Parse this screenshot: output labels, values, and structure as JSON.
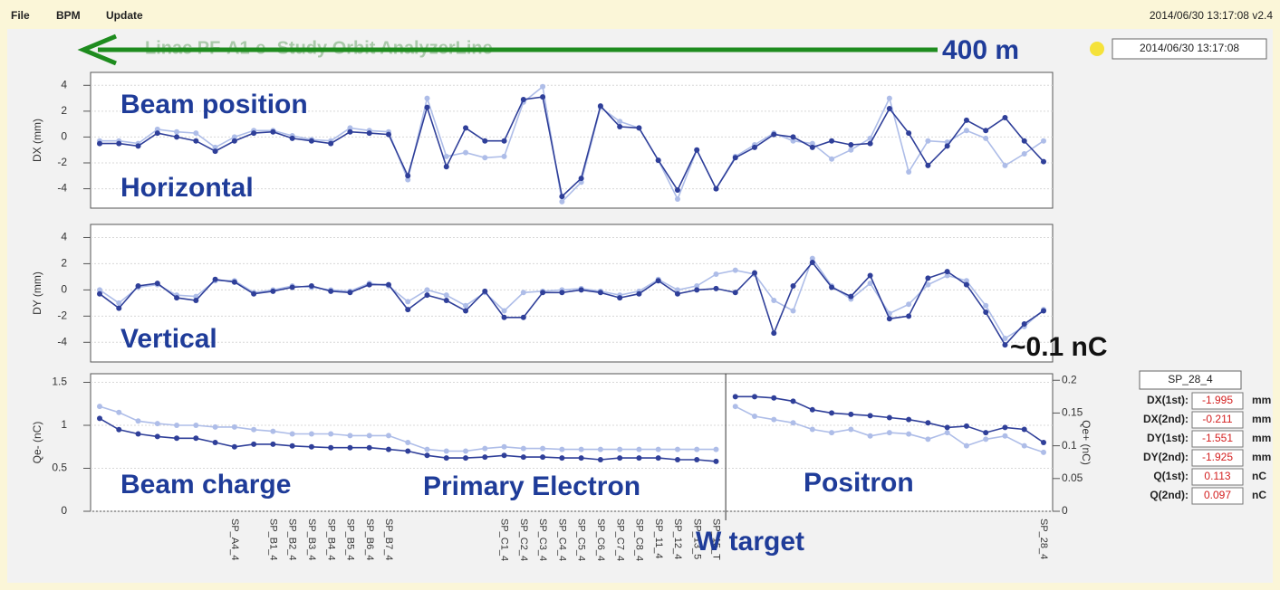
{
  "menu": [
    "File",
    "BPM",
    "Update"
  ],
  "header": {
    "status": "2014/06/30 13:17:08  v2.4",
    "clock": "2014/06/30 13:17:08",
    "title": "Linac PF-A1-e- Study Orbit AnalyzerLine"
  },
  "annotations": {
    "distance": "400 m",
    "position": "Beam position",
    "horizontal": "Horizontal",
    "vertical": "Vertical",
    "charge_level": "~0.1 nC",
    "charge": "Beam charge",
    "electron": "Primary Electron",
    "positron": "Positron",
    "target": "W target"
  },
  "readout": {
    "bpm": "SP_28_4",
    "rows": [
      {
        "label": "DX(1st):",
        "value": -1.995,
        "unit": "mm"
      },
      {
        "label": "DX(2nd):",
        "value": -0.211,
        "unit": "mm"
      },
      {
        "label": "DY(1st):",
        "value": -1.551,
        "unit": "mm"
      },
      {
        "label": "DY(2nd):",
        "value": -1.925,
        "unit": "mm"
      },
      {
        "label": "Q(1st):",
        "value": 0.113,
        "unit": "nC"
      },
      {
        "label": "Q(2nd):",
        "value": 0.097,
        "unit": "nC"
      }
    ]
  },
  "chart_data": [
    {
      "type": "line",
      "ylabel": "DX (mm)",
      "ylim": [
        -5.5,
        5
      ],
      "yticks": [
        -4,
        -2,
        0,
        2,
        4
      ],
      "grid": true,
      "series": [
        {
          "color": "#aebde8",
          "values": [
            -0.3,
            -0.3,
            -0.5,
            0.6,
            0.4,
            0.3,
            -0.8,
            0,
            0.5,
            0.5,
            0.1,
            -0.2,
            -0.3,
            0.7,
            0.5,
            0.4,
            -3.3,
            3,
            -1.5,
            -1.2,
            -1.6,
            -1.5,
            2.7,
            3.9,
            -5,
            -3.5,
            2.3,
            1.2,
            0.7,
            -1.8,
            -4.8,
            -1,
            -4,
            -1.5,
            -0.6,
            0.3,
            -0.3,
            -0.5,
            -1.7,
            -1,
            -0.1,
            3,
            -2.7,
            -0.3,
            -0.4,
            0.5,
            -0.1,
            -2.2,
            -1.3,
            -0.3
          ]
        },
        {
          "color": "#2f3f99",
          "values": [
            -0.5,
            -0.5,
            -0.7,
            0.3,
            0,
            -0.3,
            -1.1,
            -0.3,
            0.3,
            0.4,
            -0.1,
            -0.3,
            -0.5,
            0.4,
            0.3,
            0.2,
            -3,
            2.3,
            -2.3,
            0.7,
            -0.3,
            -0.3,
            2.9,
            3.1,
            -4.6,
            -3.2,
            2.4,
            0.8,
            0.7,
            -1.8,
            -4.1,
            -1,
            -4,
            -1.6,
            -0.8,
            0.2,
            0,
            -0.8,
            -0.3,
            -0.6,
            -0.5,
            2.2,
            0.3,
            -2.2,
            -0.7,
            1.3,
            0.5,
            1.5,
            -0.3,
            -1.9
          ]
        }
      ]
    },
    {
      "type": "line",
      "ylabel": "DY (mm)",
      "ylim": [
        -5.5,
        5
      ],
      "yticks": [
        -4,
        -2,
        0,
        2,
        4
      ],
      "grid": true,
      "series": [
        {
          "color": "#aebde8",
          "values": [
            0,
            -1,
            0.2,
            0.4,
            -0.4,
            -0.5,
            0.7,
            0.7,
            -0.2,
            0,
            0.3,
            0.2,
            0,
            -0.1,
            0.5,
            0.3,
            -0.9,
            0,
            -0.4,
            -1.2,
            -0.2,
            -1.6,
            -0.2,
            -0.1,
            0,
            0.1,
            -0.1,
            -0.4,
            -0.1,
            0.8,
            0,
            0.3,
            1.2,
            1.5,
            1.2,
            -0.8,
            -1.6,
            2.4,
            0.3,
            -0.7,
            0.5,
            -1.8,
            -1.1,
            0.4,
            1.1,
            0.7,
            -1.2,
            -3.7,
            -2.8,
            -1.5
          ]
        },
        {
          "color": "#2f3f99",
          "values": [
            -0.3,
            -1.4,
            0.3,
            0.5,
            -0.6,
            -0.8,
            0.8,
            0.6,
            -0.3,
            -0.1,
            0.2,
            0.3,
            -0.1,
            -0.2,
            0.4,
            0.4,
            -1.5,
            -0.4,
            -0.8,
            -1.6,
            -0.1,
            -2.1,
            -2.1,
            -0.2,
            -0.2,
            0,
            -0.2,
            -0.6,
            -0.3,
            0.7,
            -0.3,
            0,
            0.1,
            -0.2,
            1.3,
            -3.3,
            0.3,
            2.1,
            0.2,
            -0.5,
            1.1,
            -2.2,
            -2,
            0.9,
            1.4,
            0.4,
            -1.7,
            -4.2,
            -2.6,
            -1.6
          ]
        }
      ]
    },
    {
      "type": "line",
      "ylabel": "Qe- (nC)",
      "y2label": "Qe+ (nC)",
      "ylim": [
        0,
        1.6
      ],
      "yticks": [
        0,
        0.5,
        1,
        1.5
      ],
      "y2lim": [
        0,
        0.21
      ],
      "y2ticks": [
        0,
        0.05,
        0.1,
        0.15,
        0.2
      ],
      "grid": true,
      "categories": [
        null,
        null,
        null,
        null,
        null,
        null,
        null,
        "SP_A4_4",
        null,
        "SP_B1_4",
        "SP_B2_4",
        "SP_B3_4",
        "SP_B4_4",
        "SP_B5_4",
        "SP_B6_4",
        "SP_B7_4",
        null,
        null,
        null,
        null,
        null,
        "SP_C1_4",
        "SP_C2_4",
        "SP_C3_4",
        "SP_C4_4",
        "SP_C5_4",
        "SP_C6_4",
        "SP_C7_4",
        "SP_C8_4",
        "SP_11_4",
        "SP_12_4",
        "SP_13_5",
        "SP_15_T",
        null,
        null,
        null,
        null,
        null,
        null,
        null,
        null,
        null,
        null,
        null,
        null,
        null,
        null,
        null,
        null,
        "SP_28_4"
      ],
      "series": [
        {
          "color": "#aebde8",
          "values": [
            1.22,
            1.15,
            1.05,
            1.02,
            1,
            1,
            0.98,
            0.98,
            0.95,
            0.93,
            0.9,
            0.9,
            0.9,
            0.88,
            0.88,
            0.88,
            0.8,
            0.72,
            0.7,
            0.7,
            0.73,
            0.75,
            0.73,
            0.73,
            0.72,
            0.72,
            0.72,
            0.72,
            0.72,
            0.72,
            0.72,
            0.72,
            0.72,
            null,
            null,
            null,
            null,
            null,
            null,
            null,
            null,
            null,
            null,
            null,
            null,
            null,
            null,
            null,
            null,
            null
          ]
        },
        {
          "color": "#2f3f99",
          "values": [
            1.08,
            0.95,
            0.9,
            0.87,
            0.85,
            0.85,
            0.8,
            0.75,
            0.78,
            0.78,
            0.76,
            0.75,
            0.74,
            0.74,
            0.74,
            0.72,
            0.7,
            0.65,
            0.62,
            0.62,
            0.63,
            0.65,
            0.63,
            0.63,
            0.62,
            0.62,
            0.6,
            0.62,
            0.62,
            0.62,
            0.6,
            0.6,
            0.58,
            null,
            null,
            null,
            null,
            null,
            null,
            null,
            null,
            null,
            null,
            null,
            null,
            null,
            null,
            null,
            null,
            null
          ]
        },
        {
          "color": "#aebde8",
          "axis": "y2",
          "values": [
            null,
            null,
            null,
            null,
            null,
            null,
            null,
            null,
            null,
            null,
            null,
            null,
            null,
            null,
            null,
            null,
            null,
            null,
            null,
            null,
            null,
            null,
            null,
            null,
            null,
            null,
            null,
            null,
            null,
            null,
            null,
            null,
            null,
            0.16,
            0.145,
            0.14,
            0.135,
            0.125,
            0.12,
            0.125,
            0.115,
            0.12,
            0.118,
            0.11,
            0.12,
            0.1,
            0.11,
            0.115,
            0.1,
            0.09
          ]
        },
        {
          "color": "#2f3f99",
          "axis": "y2",
          "values": [
            null,
            null,
            null,
            null,
            null,
            null,
            null,
            null,
            null,
            null,
            null,
            null,
            null,
            null,
            null,
            null,
            null,
            null,
            null,
            null,
            null,
            null,
            null,
            null,
            null,
            null,
            null,
            null,
            null,
            null,
            null,
            null,
            null,
            0.175,
            0.175,
            0.173,
            0.168,
            0.155,
            0.15,
            0.148,
            0.146,
            0.143,
            0.14,
            0.135,
            0.128,
            0.13,
            0.12,
            0.128,
            0.125,
            0.105
          ]
        }
      ]
    }
  ]
}
